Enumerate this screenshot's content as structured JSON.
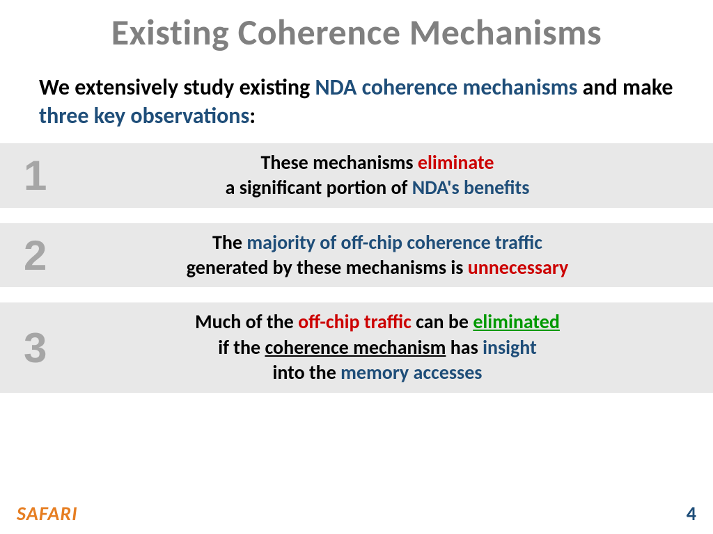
{
  "title": "Existing Coherence Mechanisms",
  "intro": {
    "prefix": "We extensively study existing ",
    "highlight1": "NDA coherence mechanisms",
    "mid": " and make ",
    "highlight2": "three key observations",
    "suffix": ":"
  },
  "observations": [
    {
      "num": "1",
      "line1_a": "These mechanisms ",
      "line1_b": "eliminate",
      "line2_a": "a significant portion of ",
      "line2_b": "NDA's benefits"
    },
    {
      "num": "2",
      "line1_a": "The ",
      "line1_b": "majority of off-chip coherence traffic",
      "line2_a": "generated by these mechanisms is ",
      "line2_b": "unnecessary"
    },
    {
      "num": "3",
      "line1_a": "Much of the ",
      "line1_b": "off-chip traffic",
      "line1_c": " can be ",
      "line1_d": "eliminated",
      "line2_a": "if the ",
      "line2_b": "coherence mechanism",
      "line2_c": " has ",
      "line2_d": "insight",
      "line3_a": "into the ",
      "line3_b": "memory accesses"
    }
  ],
  "footer": {
    "logo": "SAFARI",
    "page": "4"
  },
  "colors": {
    "title_gray": "#808080",
    "accent_blue": "#1f4e79",
    "accent_red": "#cc0000",
    "accent_green": "#009900",
    "num_gray": "#a6a6a6",
    "box_bg": "#e8e8e8",
    "safari_orange": "#e67e22"
  }
}
